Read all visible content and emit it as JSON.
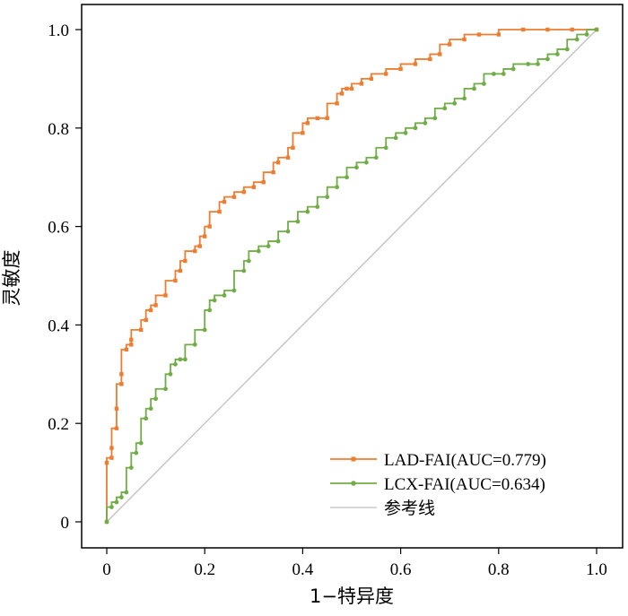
{
  "chart_data": {
    "type": "line",
    "xlabel": "1−特异度",
    "ylabel": "灵敏度",
    "xlim": [
      0,
      1
    ],
    "ylim": [
      0,
      1
    ],
    "xticks": [
      "0",
      "0.2",
      "0.4",
      "0.6",
      "0.8",
      "1.0"
    ],
    "yticks": [
      "0",
      "0.2",
      "0.4",
      "0.6",
      "0.8",
      "1.0"
    ],
    "grid": false,
    "legend_position": "bottom-right",
    "series": [
      {
        "name": "LAD-FAI(AUC=0.779)",
        "color": "#ED7D31",
        "marker": "square",
        "x": [
          0,
          0,
          0.01,
          0.01,
          0.02,
          0.02,
          0.03,
          0.03,
          0.04,
          0.05,
          0.05,
          0.07,
          0.08,
          0.09,
          0.1,
          0.12,
          0.14,
          0.15,
          0.16,
          0.18,
          0.19,
          0.2,
          0.21,
          0.23,
          0.24,
          0.26,
          0.28,
          0.3,
          0.32,
          0.34,
          0.35,
          0.37,
          0.38,
          0.4,
          0.41,
          0.43,
          0.45,
          0.47,
          0.48,
          0.49,
          0.5,
          0.52,
          0.54,
          0.57,
          0.6,
          0.63,
          0.66,
          0.68,
          0.7,
          0.73,
          0.76,
          0.8,
          0.85,
          0.9,
          0.95,
          1.0
        ],
        "y": [
          0,
          0.12,
          0.13,
          0.15,
          0.19,
          0.23,
          0.28,
          0.3,
          0.35,
          0.36,
          0.37,
          0.39,
          0.41,
          0.43,
          0.44,
          0.46,
          0.49,
          0.51,
          0.53,
          0.55,
          0.56,
          0.58,
          0.6,
          0.63,
          0.65,
          0.66,
          0.67,
          0.68,
          0.69,
          0.71,
          0.73,
          0.74,
          0.76,
          0.79,
          0.81,
          0.82,
          0.82,
          0.85,
          0.87,
          0.88,
          0.88,
          0.89,
          0.9,
          0.91,
          0.92,
          0.93,
          0.94,
          0.95,
          0.97,
          0.98,
          0.99,
          0.99,
          1.0,
          1.0,
          1.0,
          1.0
        ]
      },
      {
        "name": "LCX-FAI(AUC=0.634)",
        "color": "#70AD47",
        "marker": "circle",
        "x": [
          0,
          0.01,
          0.02,
          0.03,
          0.04,
          0.05,
          0.06,
          0.07,
          0.08,
          0.09,
          0.1,
          0.12,
          0.13,
          0.14,
          0.15,
          0.16,
          0.18,
          0.2,
          0.21,
          0.22,
          0.24,
          0.26,
          0.28,
          0.29,
          0.31,
          0.33,
          0.35,
          0.37,
          0.39,
          0.41,
          0.43,
          0.45,
          0.47,
          0.49,
          0.51,
          0.53,
          0.55,
          0.57,
          0.59,
          0.61,
          0.63,
          0.65,
          0.67,
          0.69,
          0.71,
          0.73,
          0.75,
          0.77,
          0.79,
          0.81,
          0.83,
          0.86,
          0.88,
          0.9,
          0.92,
          0.94,
          0.96,
          0.98,
          1.0
        ],
        "y": [
          0,
          0.03,
          0.04,
          0.05,
          0.06,
          0.11,
          0.14,
          0.16,
          0.21,
          0.23,
          0.25,
          0.27,
          0.3,
          0.32,
          0.33,
          0.33,
          0.36,
          0.39,
          0.43,
          0.45,
          0.46,
          0.47,
          0.51,
          0.53,
          0.55,
          0.56,
          0.57,
          0.59,
          0.61,
          0.63,
          0.64,
          0.66,
          0.68,
          0.7,
          0.72,
          0.73,
          0.74,
          0.76,
          0.78,
          0.79,
          0.8,
          0.81,
          0.82,
          0.84,
          0.85,
          0.86,
          0.88,
          0.89,
          0.91,
          0.91,
          0.92,
          0.93,
          0.93,
          0.94,
          0.95,
          0.96,
          0.98,
          0.99,
          1.0
        ]
      },
      {
        "name": "参考线",
        "color": "#BFBFBF",
        "marker": "none",
        "x": [
          0,
          1
        ],
        "y": [
          0,
          1
        ]
      }
    ]
  }
}
